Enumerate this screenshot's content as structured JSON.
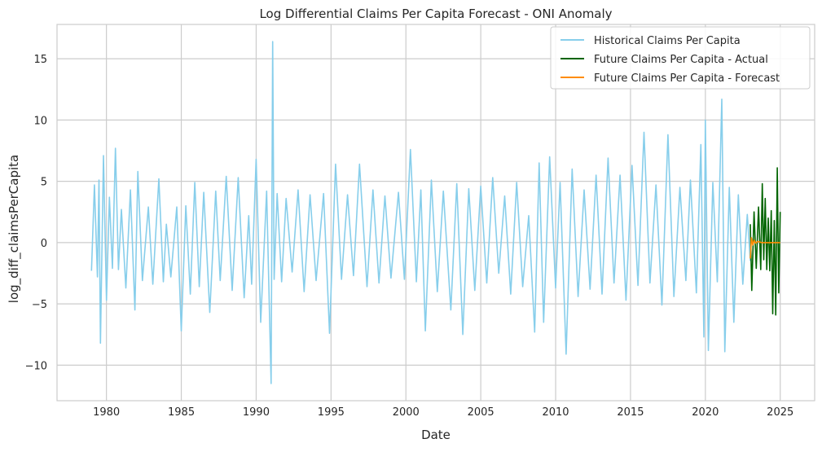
{
  "chart_data": {
    "type": "line",
    "title": "Log Differential Claims Per Capita Forecast - ONI Anomaly",
    "xlabel": "Date",
    "ylabel": "log_diff_claimsPerCapita",
    "xlim": [
      1976.7,
      2027.3
    ],
    "ylim": [
      -12.9,
      17.8
    ],
    "xticks": [
      1980,
      1985,
      1990,
      1995,
      2000,
      2005,
      2010,
      2015,
      2020,
      2025
    ],
    "xtick_labels": [
      "1980",
      "1985",
      "1990",
      "1995",
      "2000",
      "2005",
      "2010",
      "2015",
      "2020",
      "2025"
    ],
    "yticks": [
      -10,
      -5,
      0,
      5,
      10,
      15
    ],
    "ytick_labels": [
      "−10",
      "−5",
      "0",
      "5",
      "10",
      "15"
    ],
    "grid": true,
    "legend_position": "top-right",
    "series": [
      {
        "name": "Historical Claims Per Capita",
        "color": "#87ceeb",
        "x": [
          1979.0,
          1979.2,
          1979.4,
          1979.5,
          1979.6,
          1979.8,
          1980.0,
          1980.2,
          1980.4,
          1980.6,
          1980.8,
          1981.0,
          1981.3,
          1981.6,
          1981.9,
          1982.1,
          1982.4,
          1982.8,
          1983.1,
          1983.5,
          1983.8,
          1984.0,
          1984.3,
          1984.7,
          1985.0,
          1985.3,
          1985.6,
          1985.9,
          1986.2,
          1986.5,
          1986.9,
          1987.3,
          1987.6,
          1988.0,
          1988.4,
          1988.8,
          1989.2,
          1989.5,
          1989.7,
          1990.0,
          1990.3,
          1990.7,
          1991.0,
          1991.1,
          1991.2,
          1991.4,
          1991.7,
          1992.0,
          1992.4,
          1992.8,
          1993.2,
          1993.6,
          1994.0,
          1994.5,
          1994.9,
          1995.3,
          1995.7,
          1996.1,
          1996.5,
          1996.9,
          1997.4,
          1997.8,
          1998.2,
          1998.6,
          1999.0,
          1999.5,
          1999.9,
          2000.3,
          2000.7,
          2001.0,
          2001.3,
          2001.7,
          2002.1,
          2002.5,
          2003.0,
          2003.4,
          2003.8,
          2004.2,
          2004.6,
          2005.0,
          2005.4,
          2005.8,
          2006.2,
          2006.6,
          2007.0,
          2007.4,
          2007.8,
          2008.2,
          2008.6,
          2008.9,
          2009.2,
          2009.6,
          2010.0,
          2010.3,
          2010.7,
          2011.1,
          2011.5,
          2011.9,
          2012.3,
          2012.7,
          2013.1,
          2013.5,
          2013.9,
          2014.3,
          2014.7,
          2015.1,
          2015.5,
          2015.9,
          2016.3,
          2016.7,
          2017.1,
          2017.5,
          2017.9,
          2018.3,
          2018.7,
          2019.0,
          2019.4,
          2019.7,
          2019.9,
          2020.0,
          2020.2,
          2020.5,
          2020.8,
          2021.1,
          2021.3,
          2021.6,
          2021.9,
          2022.2,
          2022.5,
          2022.8,
          2023.0
        ],
        "y": [
          -2.3,
          4.7,
          -2.8,
          5.1,
          -8.2,
          7.1,
          -4.7,
          3.7,
          -2.1,
          7.7,
          -2.2,
          2.7,
          -3.7,
          4.3,
          -5.5,
          5.8,
          -3.1,
          2.9,
          -3.4,
          5.2,
          -3.2,
          1.5,
          -2.8,
          2.9,
          -7.2,
          3.0,
          -4.2,
          4.9,
          -3.6,
          4.1,
          -5.7,
          4.2,
          -3.1,
          5.4,
          -3.9,
          5.3,
          -4.5,
          2.2,
          -3.4,
          6.8,
          -6.5,
          4.2,
          -11.5,
          16.4,
          -3.0,
          4.0,
          -3.2,
          3.6,
          -2.4,
          4.3,
          -4.0,
          3.9,
          -3.1,
          4.0,
          -7.4,
          6.4,
          -3.0,
          3.9,
          -2.7,
          6.4,
          -3.6,
          4.3,
          -3.3,
          3.8,
          -2.9,
          4.1,
          -3.0,
          7.6,
          -3.2,
          4.3,
          -7.2,
          5.1,
          -4.0,
          4.2,
          -5.5,
          4.8,
          -7.5,
          4.4,
          -3.9,
          4.6,
          -3.3,
          5.3,
          -2.5,
          3.8,
          -4.2,
          4.9,
          -3.6,
          2.2,
          -7.3,
          6.5,
          -6.5,
          7.0,
          -3.7,
          4.9,
          -9.1,
          6.0,
          -4.4,
          4.3,
          -3.8,
          5.5,
          -4.2,
          6.9,
          -3.3,
          5.5,
          -4.7,
          6.3,
          -3.5,
          9.0,
          -3.3,
          4.7,
          -5.1,
          8.8,
          -4.4,
          4.5,
          -3.1,
          5.1,
          -4.1,
          8.0,
          -7.7,
          10.0,
          -8.8,
          4.9,
          -3.2,
          11.7,
          -8.9,
          4.5,
          -6.5,
          3.9,
          -3.4,
          2.3,
          -1.5
        ]
      },
      {
        "name": "Future Claims Per Capita - Actual",
        "color": "#006400",
        "x": [
          2023.0,
          2023.1,
          2023.25,
          2023.4,
          2023.55,
          2023.7,
          2023.8,
          2023.9,
          2024.0,
          2024.1,
          2024.2,
          2024.3,
          2024.4,
          2024.5,
          2024.6,
          2024.7,
          2024.8,
          2024.9,
          2025.0
        ],
        "y": [
          1.5,
          -3.9,
          2.5,
          -2.1,
          2.9,
          -2.2,
          4.8,
          -1.4,
          3.6,
          -2.2,
          2.0,
          -2.3,
          2.6,
          -5.8,
          1.8,
          -5.9,
          6.1,
          -4.1,
          2.5
        ]
      },
      {
        "name": "Future Claims Per Capita - Forecast",
        "color": "#ff8c00",
        "x": [
          2023.0,
          2023.08,
          2023.17,
          2023.25,
          2023.35,
          2023.5,
          2023.75,
          2024.0,
          2024.5,
          2025.0
        ],
        "y": [
          -1.3,
          0.4,
          -0.2,
          0.2,
          -0.05,
          0.1,
          0.0,
          0.0,
          0.0,
          0.0
        ]
      }
    ]
  }
}
